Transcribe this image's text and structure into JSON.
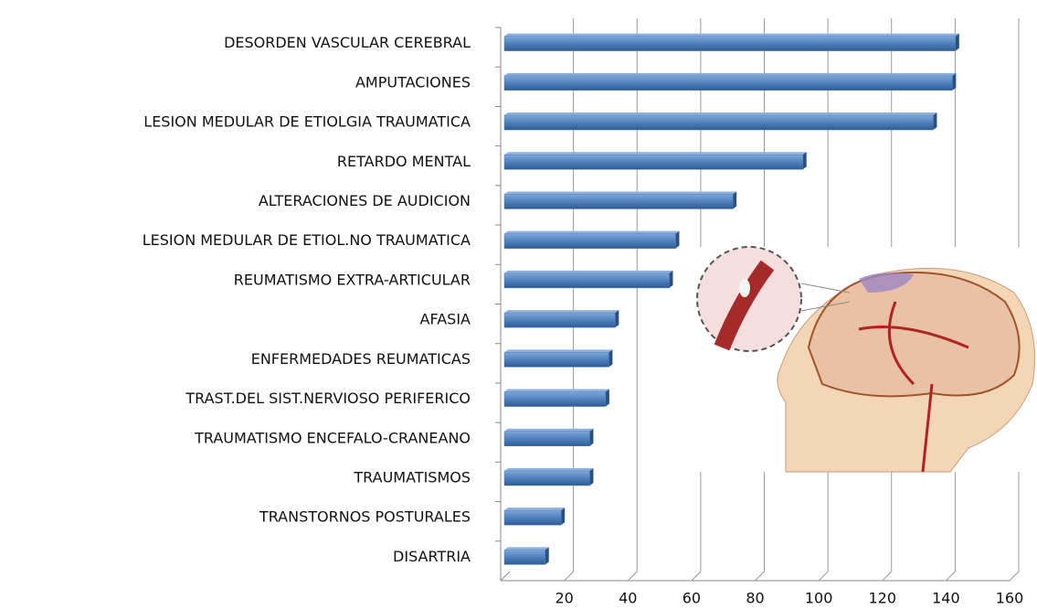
{
  "chart_data": {
    "type": "bar",
    "orientation": "horizontal",
    "categories": [
      "DESORDEN VASCULAR CEREBRAL",
      "AMPUTACIONES",
      "LESION MEDULAR DE ETIOLGIA TRAUMATICA",
      "RETARDO MENTAL",
      "ALTERACIONES DE AUDICION",
      "LESION MEDULAR DE ETIOL.NO TRAUMATICA",
      "REUMATISMO  EXTRA-ARTICULAR",
      "AFASIA",
      "ENFERMEDADES  REUMATICAS",
      "TRAST.DEL SIST.NERVIOSO  PERIFERICO",
      "TRAUMATISMO ENCEFALO-CRANEANO",
      "TRAUMATISMOS",
      "TRANSTORNOS POSTURALES",
      "DISARTRIA"
    ],
    "values": [
      143,
      142,
      136,
      95,
      73,
      55,
      53,
      36,
      34,
      33,
      28,
      28,
      19,
      14
    ],
    "color": "#4f81bd",
    "xlim": [
      0,
      160
    ],
    "xticks": [
      20,
      40,
      60,
      80,
      100,
      120,
      140,
      160
    ],
    "grid": true
  }
}
